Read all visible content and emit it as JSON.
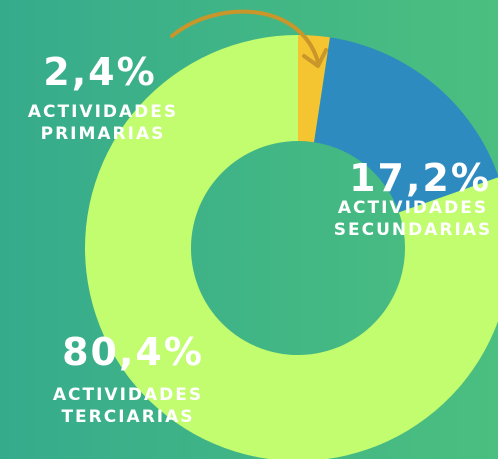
{
  "chart_data": {
    "type": "pie",
    "categories": [
      "ACTIVIDADES PRIMARIAS",
      "ACTIVIDADES SECUNDARIAS",
      "ACTIVIDADES TERCIARIAS"
    ],
    "values": [
      2.4,
      17.2,
      80.4
    ],
    "value_labels": [
      "2,4%",
      "17,2%",
      "80,4%"
    ],
    "colors": [
      "#f5c431",
      "#2e8bbf",
      "#c2fc6f"
    ]
  }
}
